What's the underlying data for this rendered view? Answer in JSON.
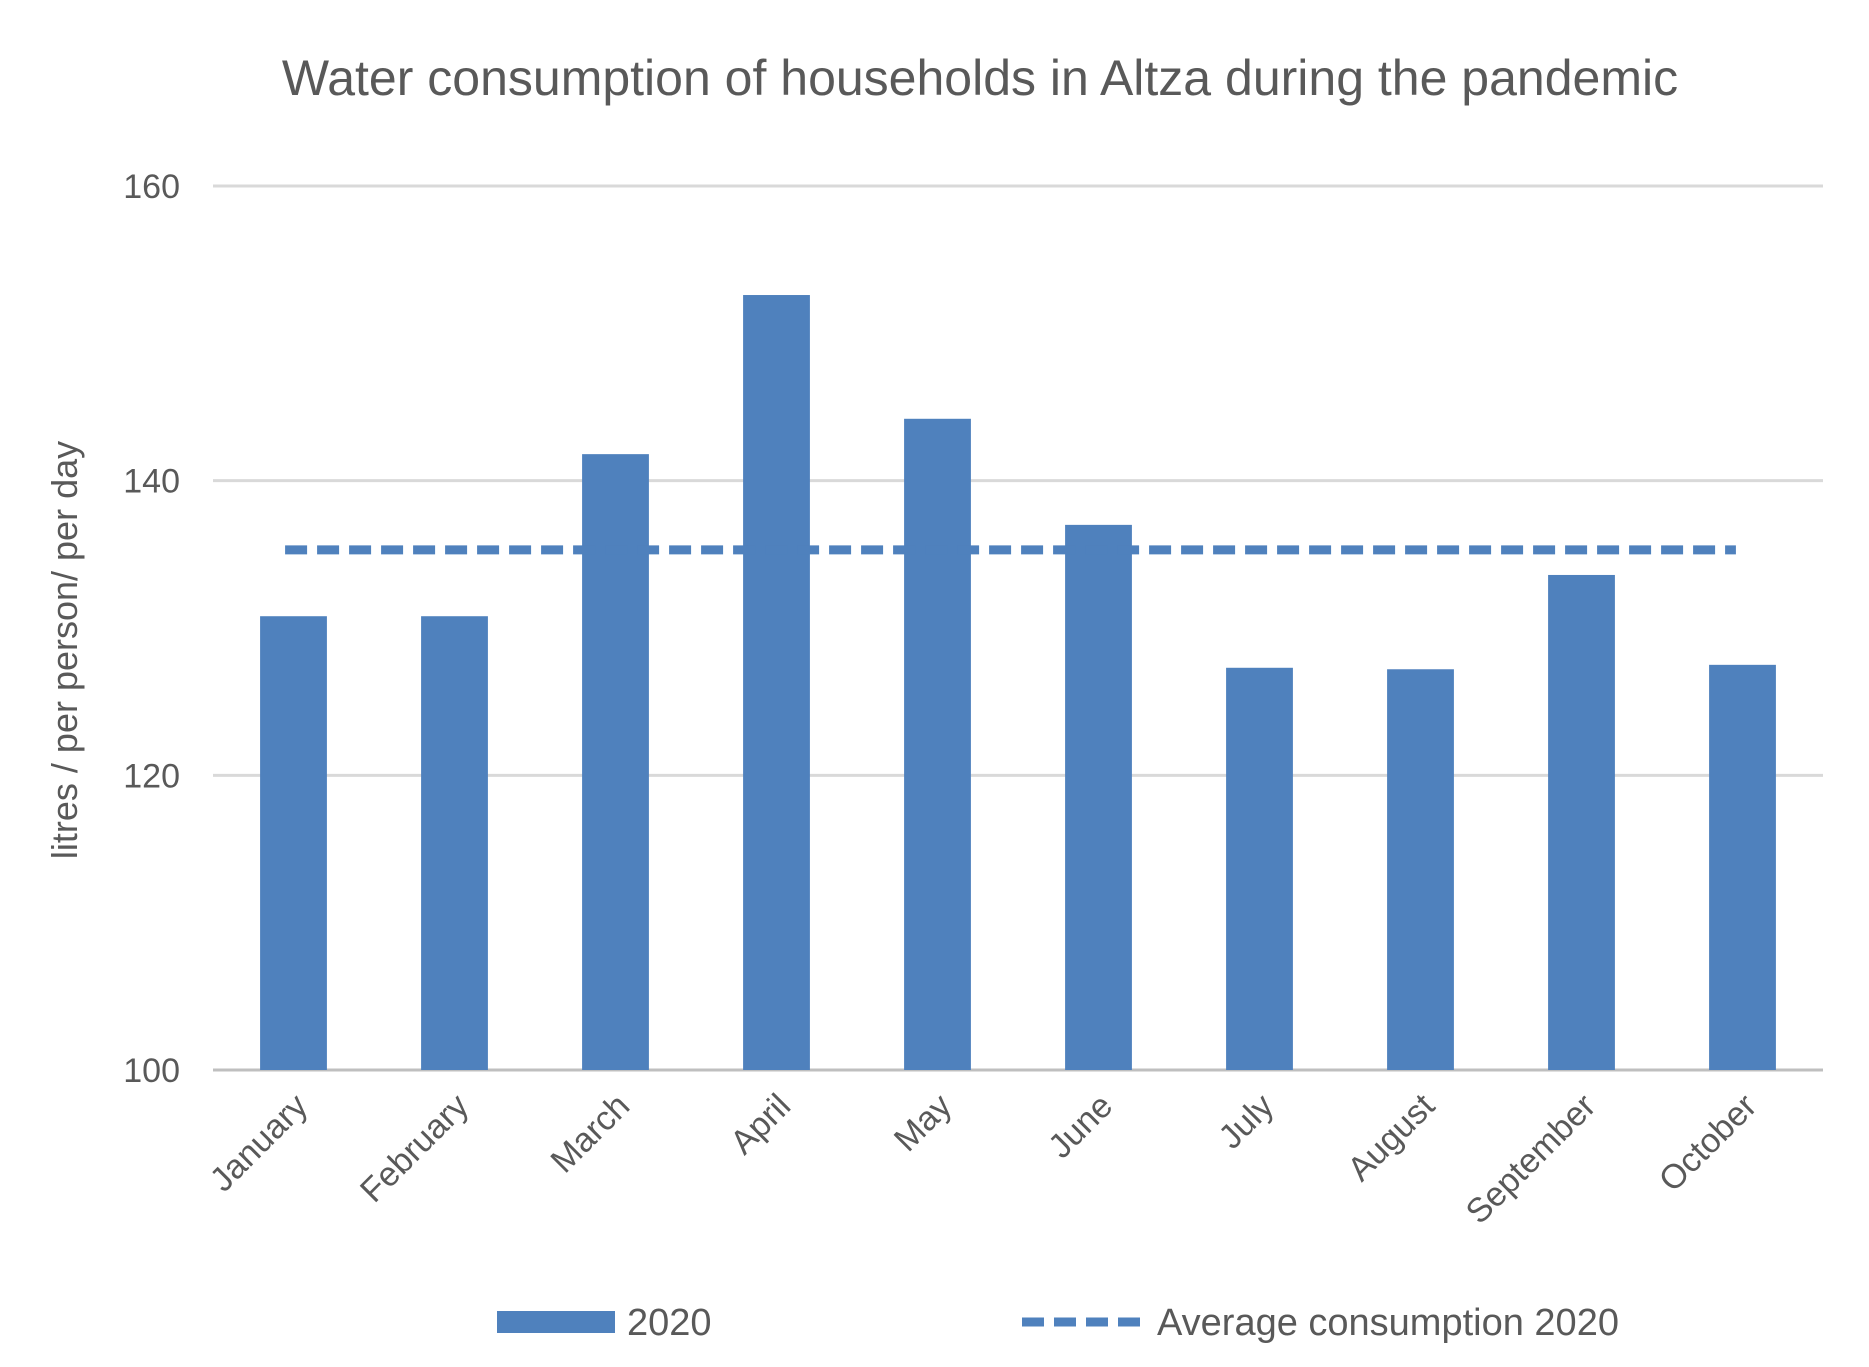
{
  "chart_data": {
    "type": "bar",
    "title": "Water consumption of households in Altza during the pandemic",
    "ylabel": "litres / per person/ per day",
    "xlabel": "",
    "ylim": [
      100,
      160
    ],
    "yticks": [
      100,
      120,
      140,
      160
    ],
    "grid": true,
    "legend_position": "bottom",
    "categories": [
      "January",
      "February",
      "March",
      "April",
      "May",
      "June",
      "July",
      "August",
      "September",
      "October"
    ],
    "series": [
      {
        "name": "2020",
        "type": "bar",
        "color": "#4F81BD",
        "values": [
          130.8,
          130.8,
          141.8,
          152.6,
          144.2,
          137.0,
          127.3,
          127.2,
          133.6,
          127.5
        ]
      },
      {
        "name": "Average consumption 2020",
        "type": "line",
        "style": "dashed",
        "color": "#4F81BD",
        "value": 135.3
      }
    ]
  }
}
